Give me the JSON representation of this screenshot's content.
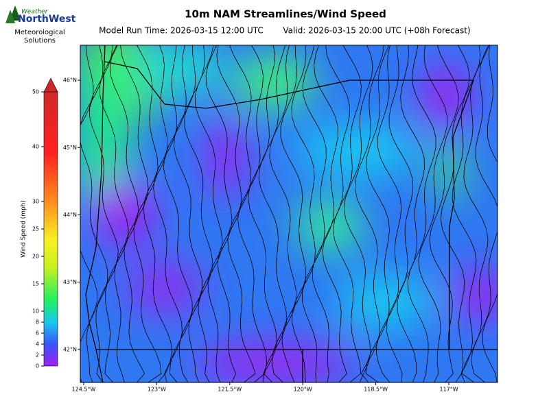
{
  "header": {
    "title": "10m NAM Streamlines/Wind Speed",
    "run": "Model Run Time: 2026-03-15 12:00 UTC",
    "valid": "Valid: 2026-03-15 20:00 UTC  (+08h Forecast)"
  },
  "logo": {
    "tag": "Weather",
    "brand": "NorthWest",
    "org": "Meteorological Solutions"
  },
  "colorbar": {
    "label": "Wind Speed (mph)",
    "lim": [
      0,
      50
    ],
    "ticks": [
      0,
      2,
      4,
      6,
      8,
      10,
      15,
      20,
      25,
      30,
      40,
      50
    ]
  },
  "map": {
    "xlim": [
      -124.57,
      -116.0
    ],
    "ylim": [
      41.51,
      46.52
    ],
    "lon_ticks": [
      {
        "value": -124.5,
        "label": "124.5°W"
      },
      {
        "value": -123,
        "label": "123°W"
      },
      {
        "value": -121.5,
        "label": "121.5°W"
      },
      {
        "value": -120,
        "label": "120°W"
      },
      {
        "value": -118.5,
        "label": "118.5°W"
      },
      {
        "value": -117,
        "label": "117°W"
      }
    ],
    "lat_ticks": [
      {
        "value": 42,
        "label": "42°N"
      },
      {
        "value": 43,
        "label": "43°N"
      },
      {
        "value": 44,
        "label": "44°N"
      },
      {
        "value": 45,
        "label": "45°N"
      },
      {
        "value": 46,
        "label": "46°N"
      }
    ]
  }
}
